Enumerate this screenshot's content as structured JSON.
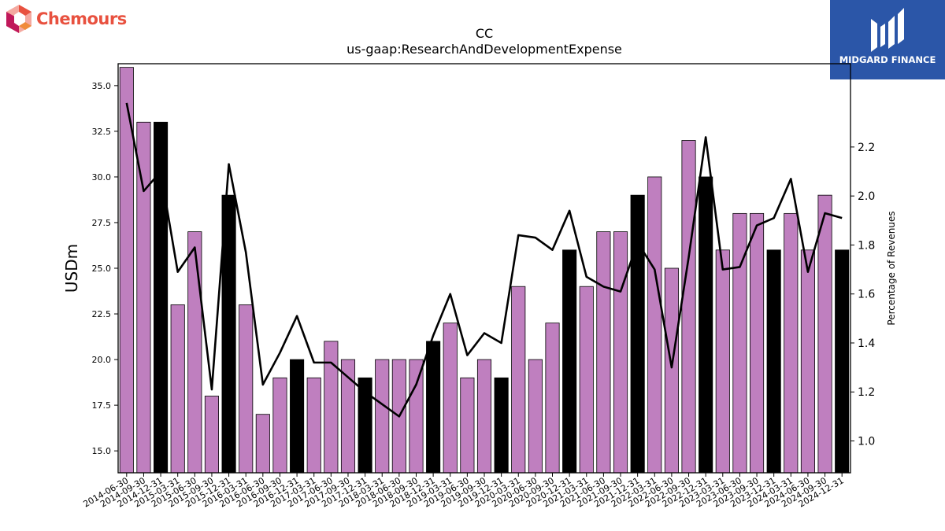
{
  "brand": {
    "name": "Chemours",
    "tm": "™"
  },
  "sponsor": {
    "name": "MIDGARD FINANCE"
  },
  "chart_data": {
    "type": "bar",
    "title": "CC",
    "subtitle": "us-gaap:ResearchAndDevelopmentExpense",
    "ylabel": "USDm",
    "y2label": "Percentage of Revenues",
    "ylim": [
      13.8,
      36.2
    ],
    "y2lim": [
      0.87,
      2.54
    ],
    "yticks": [
      "15.0",
      "17.5",
      "20.0",
      "22.5",
      "25.0",
      "27.5",
      "30.0",
      "32.5",
      "35.0"
    ],
    "y2ticks": [
      "1.0",
      "1.2",
      "1.4",
      "1.6",
      "1.8",
      "2.0",
      "2.2"
    ],
    "grid": false,
    "colors": {
      "quarter": "#bf7fbf",
      "year_end": "#000000",
      "line": "#000000"
    },
    "categories": [
      "2014-06-30",
      "2014-09-30",
      "2014-12-31",
      "2015-03-31",
      "2015-06-30",
      "2015-09-30",
      "2015-12-31",
      "2016-03-31",
      "2016-06-30",
      "2016-09-30",
      "2016-12-31",
      "2017-03-31",
      "2017-06-30",
      "2017-09-30",
      "2017-12-31",
      "2018-03-31",
      "2018-06-30",
      "2018-09-30",
      "2018-12-31",
      "2019-03-31",
      "2019-06-30",
      "2019-09-30",
      "2019-12-31",
      "2020-03-31",
      "2020-06-30",
      "2020-09-30",
      "2020-12-31",
      "2021-03-31",
      "2021-06-30",
      "2021-09-30",
      "2021-12-31",
      "2022-03-31",
      "2022-06-30",
      "2022-09-30",
      "2022-12-31",
      "2023-03-31",
      "2023-06-30",
      "2023-09-30",
      "2023-12-31",
      "2024-03-31",
      "2024-06-30",
      "2024-09-30",
      "2024-12-31"
    ],
    "series": [
      {
        "values": [
          36,
          33,
          33,
          23,
          27,
          18,
          29,
          23,
          17,
          19,
          20,
          19,
          21,
          20,
          19,
          20,
          20,
          20,
          21,
          22,
          19,
          20,
          19,
          24,
          20,
          22,
          26,
          24,
          27,
          27,
          29,
          30,
          25,
          32,
          30,
          26,
          28,
          28,
          26,
          28,
          26,
          29,
          26
        ]
      },
      {
        "values": [
          2.38,
          2.02,
          2.1,
          1.69,
          1.79,
          1.21,
          2.13,
          1.77,
          1.23,
          1.36,
          1.51,
          1.32,
          1.32,
          1.26,
          1.2,
          1.15,
          1.1,
          1.23,
          1.43,
          1.6,
          1.35,
          1.44,
          1.4,
          1.84,
          1.83,
          1.78,
          1.94,
          1.67,
          1.63,
          1.61,
          1.81,
          1.7,
          1.3,
          1.75,
          2.24,
          1.7,
          1.71,
          1.88,
          1.91,
          2.07,
          1.69,
          1.93,
          1.91
        ]
      }
    ]
  }
}
